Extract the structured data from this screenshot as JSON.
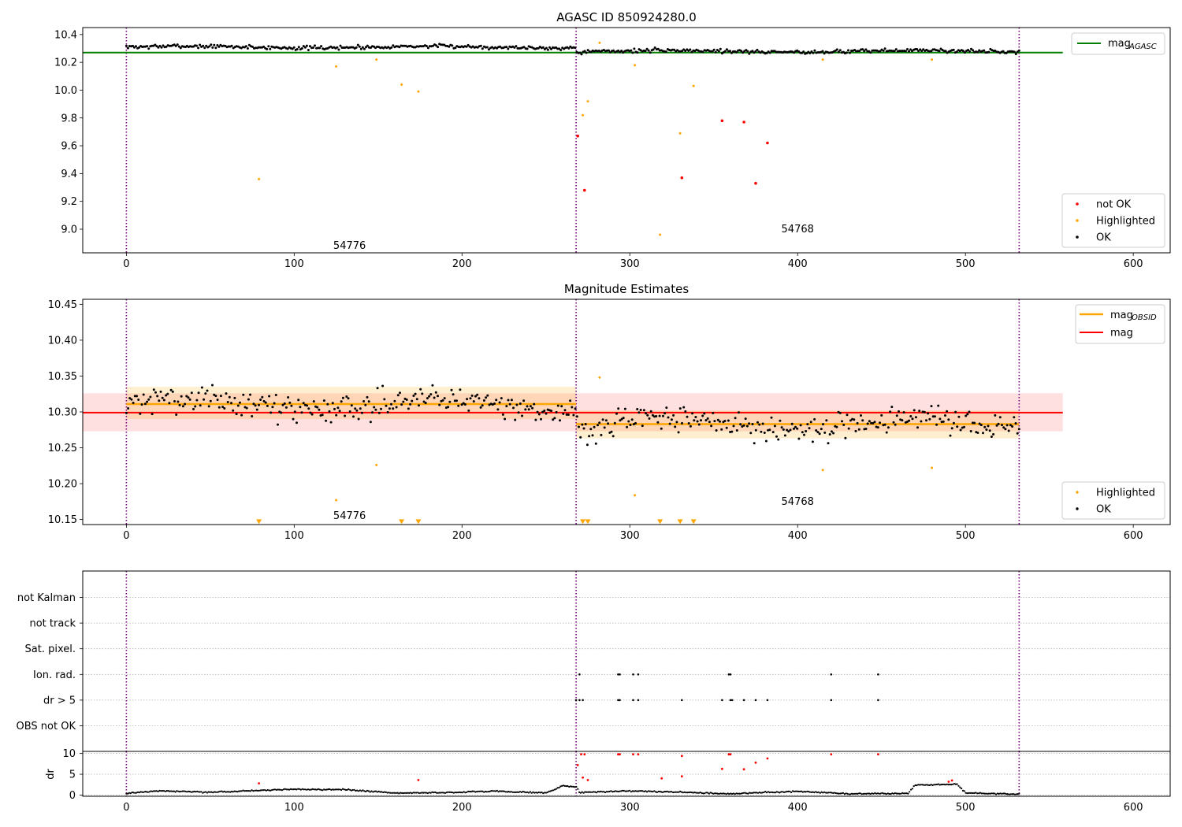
{
  "chart_data": [
    {
      "type": "scatter",
      "title": "AGASC ID 850924280.0",
      "xlabel": "",
      "ylabel": "",
      "xlim": [
        -26,
        622
      ],
      "ylim": [
        8.83,
        10.45
      ],
      "xticks": [
        0,
        100,
        200,
        300,
        400,
        500,
        600
      ],
      "yticks": [
        9.0,
        9.2,
        9.4,
        9.6,
        9.8,
        10.0,
        10.2,
        10.4
      ],
      "vlines": [
        0,
        268,
        532
      ],
      "reference_line": {
        "name": "mag_AGASC",
        "value": 10.27,
        "x_range": [
          -26,
          558
        ],
        "color": "#008000"
      },
      "legend_line": {
        "label": "mag",
        "sub": "AGASC",
        "position": "top-right"
      },
      "legend_points": {
        "position": "lower-right",
        "entries": [
          "not OK",
          "Highlighted",
          "OK"
        ]
      },
      "obsid_labels": [
        {
          "text": "54776",
          "x": 133,
          "y": 8.88
        },
        {
          "text": "54768",
          "x": 400,
          "y": 9.0
        }
      ],
      "series": [
        {
          "name": "OK",
          "color": "#000000",
          "band": {
            "x_start": 0,
            "x_end": 532,
            "center": [
              10.31,
              10.28
            ],
            "spread": 0.025,
            "count": 560
          }
        },
        {
          "name": "Highlighted",
          "color": "#ffa500",
          "points": [
            [
              79,
              9.36
            ],
            [
              125,
              10.17
            ],
            [
              149,
              10.22
            ],
            [
              164,
              10.04
            ],
            [
              174,
              9.99
            ],
            [
              272,
              9.82
            ],
            [
              275,
              9.92
            ],
            [
              282,
              10.34
            ],
            [
              303,
              10.18
            ],
            [
              318,
              8.96
            ],
            [
              330,
              9.69
            ],
            [
              338,
              10.03
            ],
            [
              415,
              10.22
            ],
            [
              480,
              10.22
            ]
          ]
        },
        {
          "name": "not OK",
          "color": "#ff0000",
          "points": [
            [
              269,
              9.67
            ],
            [
              273,
              9.28
            ],
            [
              331,
              9.37
            ],
            [
              355,
              9.78
            ],
            [
              368,
              9.77
            ],
            [
              375,
              9.33
            ],
            [
              382,
              9.62
            ]
          ]
        }
      ]
    },
    {
      "type": "scatter",
      "title": "Magnitude Estimates",
      "xlabel": "",
      "ylabel": "",
      "xlim": [
        -26,
        622
      ],
      "ylim": [
        10.143,
        10.457
      ],
      "xticks": [
        0,
        100,
        200,
        300,
        400,
        500,
        600
      ],
      "yticks": [
        10.15,
        10.2,
        10.25,
        10.3,
        10.35,
        10.4,
        10.45
      ],
      "vlines": [
        0,
        268,
        532
      ],
      "mag_line": {
        "label": "mag",
        "value": 10.299,
        "band": [
          10.273,
          10.326
        ],
        "x_range": [
          -26,
          558
        ],
        "color": "#ff0000"
      },
      "obsid_lines": [
        {
          "x_range": [
            0,
            268
          ],
          "value": 10.311,
          "band": [
            10.29,
            10.335
          ],
          "color": "#ffa500"
        },
        {
          "x_range": [
            268,
            532
          ],
          "value": 10.283,
          "band": [
            10.263,
            10.302
          ],
          "color": "#ffa500"
        }
      ],
      "legend_line": {
        "entries": [
          {
            "label": "mag",
            "sub": "OBSID"
          },
          {
            "label": "mag",
            "sub": ""
          }
        ],
        "position": "top-right"
      },
      "legend_points": {
        "position": "lower-right",
        "entries": [
          "Highlighted",
          "OK"
        ]
      },
      "obsid_labels": [
        {
          "text": "54776",
          "x": 133,
          "y": 10.155
        },
        {
          "text": "54768",
          "x": 400,
          "y": 10.175
        }
      ],
      "series": [
        {
          "name": "OK",
          "color": "#000000",
          "band": {
            "x_start": 0,
            "x_end": 532,
            "center": [
              10.311,
              10.283
            ],
            "spread": 0.033,
            "count": 520
          }
        },
        {
          "name": "Highlighted",
          "color": "#ffa500",
          "points": [
            [
              125,
              10.177
            ],
            [
              149,
              10.226
            ],
            [
              282,
              10.348
            ],
            [
              303,
              10.184
            ],
            [
              415,
              10.219
            ],
            [
              480,
              10.222
            ]
          ]
        },
        {
          "name": "Highlighted (below axis)",
          "color": "#ffa500",
          "marker": "triangle-down",
          "points": [
            [
              79,
              10.147
            ],
            [
              164,
              10.147
            ],
            [
              174,
              10.147
            ],
            [
              272,
              10.147
            ],
            [
              275,
              10.147
            ],
            [
              318,
              10.147
            ],
            [
              330,
              10.147
            ],
            [
              338,
              10.147
            ]
          ]
        }
      ]
    },
    {
      "type": "scatter",
      "title": "",
      "xlabel": "",
      "ylabel": "",
      "xlim": [
        -26,
        622
      ],
      "vlines": [
        0,
        268,
        532
      ],
      "flag_rows": [
        "not Kalman",
        "not track",
        "Sat. pixel.",
        "Ion. rad.",
        "dr > 5",
        "OBS not OK"
      ],
      "flags": {
        "Ion. rad.": [
          270,
          293,
          294,
          302,
          305,
          359,
          360,
          420,
          448
        ],
        "dr > 5": [
          268,
          270,
          272,
          293,
          294,
          302,
          305,
          331,
          355,
          360,
          361,
          368,
          375,
          382,
          420,
          448
        ]
      }
    },
    {
      "type": "scatter",
      "title": "",
      "xlabel": "",
      "ylabel": "dr",
      "xlim": [
        -26,
        622
      ],
      "ylim": [
        -0.3,
        10.5
      ],
      "yticks": [
        0,
        5,
        10
      ],
      "vlines": [
        0,
        268,
        532
      ],
      "series": [
        {
          "name": "dr",
          "color": "#000000",
          "profile": [
            [
              0,
              0.4
            ],
            [
              20,
              1.0
            ],
            [
              50,
              0.7
            ],
            [
              100,
              1.4
            ],
            [
              130,
              1.3
            ],
            [
              160,
              0.5
            ],
            [
              190,
              0.6
            ],
            [
              220,
              0.9
            ],
            [
              250,
              0.5
            ],
            [
              260,
              2.2
            ],
            [
              268,
              2.0
            ],
            [
              270,
              0.6
            ],
            [
              300,
              1.0
            ],
            [
              330,
              0.7
            ],
            [
              360,
              0.3
            ],
            [
              400,
              0.9
            ],
            [
              430,
              0.3
            ],
            [
              466,
              0.4
            ],
            [
              470,
              2.4
            ],
            [
              495,
              2.6
            ],
            [
              500,
              0.5
            ],
            [
              532,
              0.2
            ]
          ]
        },
        {
          "name": "dr > 5",
          "color": "#ff0000",
          "points": [
            [
              79,
              2.8
            ],
            [
              174,
              3.6
            ],
            [
              269,
              7.2
            ],
            [
              271,
              9.8
            ],
            [
              273,
              9.8
            ],
            [
              272,
              4.2
            ],
            [
              275,
              3.6
            ],
            [
              293,
              9.8
            ],
            [
              294,
              9.8
            ],
            [
              302,
              9.8
            ],
            [
              305,
              9.8
            ],
            [
              319,
              4.0
            ],
            [
              331,
              9.4
            ],
            [
              331,
              4.5
            ],
            [
              355,
              6.3
            ],
            [
              359,
              9.8
            ],
            [
              360,
              9.8
            ],
            [
              368,
              6.2
            ],
            [
              375,
              7.8
            ],
            [
              382,
              8.8
            ],
            [
              420,
              9.8
            ],
            [
              448,
              9.8
            ],
            [
              490,
              3.2
            ],
            [
              492,
              3.5
            ]
          ]
        }
      ]
    }
  ]
}
